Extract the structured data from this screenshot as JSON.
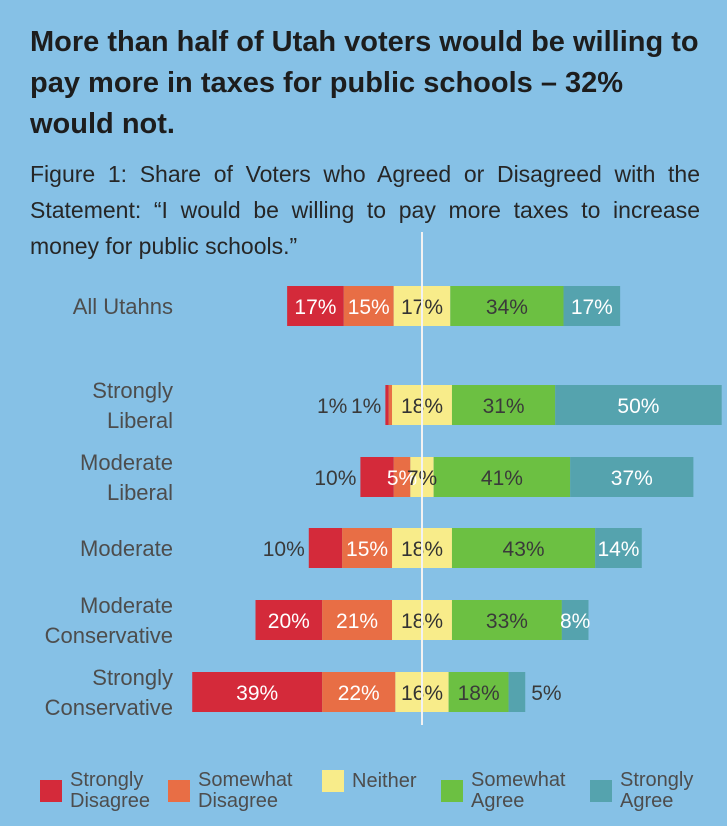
{
  "headline": "More than half of Utah voters would be willing to pay more in taxes for public schools – 32% would not.",
  "figure_title": "Figure 1: Share of Voters who Agreed or Disagreed with the Statement: “I would be willing to pay more taxes to increase money for public schools.”",
  "colors": {
    "background": "#86c1e6",
    "strongly_disagree": "#d42a3a",
    "somewhat_disagree": "#e86e45",
    "neither": "#f8ec8a",
    "somewhat_agree": "#6cc042",
    "strongly_agree": "#55a3ae"
  },
  "chart_data": {
    "type": "bar",
    "orientation": "horizontal-diverging-stacked",
    "categories": [
      "All Utahns",
      "Strongly\nLiberal",
      "Moderate\nLiberal",
      "Moderate",
      "Moderate\nConservative",
      "Strongly\nConservative"
    ],
    "series": [
      {
        "name": "Strongly Disagree",
        "values": [
          17,
          1,
          10,
          10,
          20,
          39
        ],
        "labels": [
          "17%",
          "1%",
          "10%",
          "10%",
          "20%",
          "39%"
        ]
      },
      {
        "name": "Somewhat Disagree",
        "values": [
          15,
          1,
          5,
          15,
          21,
          22
        ],
        "labels": [
          "15%",
          "1%",
          "5%",
          "15%",
          "21%",
          "22%"
        ]
      },
      {
        "name": "Neither",
        "values": [
          17,
          18,
          7,
          18,
          18,
          16
        ],
        "labels": [
          "17%",
          "18%",
          "7%",
          "18%",
          "18%",
          "16%"
        ]
      },
      {
        "name": "Somewhat Agree",
        "values": [
          34,
          31,
          41,
          43,
          33,
          18
        ],
        "labels": [
          "34%",
          "31%",
          "41%",
          "43%",
          "33%",
          "18%"
        ]
      },
      {
        "name": "Strongly Agree",
        "values": [
          17,
          50,
          37,
          14,
          8,
          5
        ],
        "labels": [
          "17%",
          "50%",
          "37%",
          "14%",
          "8%",
          "5%"
        ]
      }
    ]
  },
  "legend": [
    {
      "label": "Strongly\nDisagree",
      "color": "#d42a3a"
    },
    {
      "label": "Somewhat\nDisagree",
      "color": "#e86e45"
    },
    {
      "label": "Neither",
      "color": "#f8ec8a"
    },
    {
      "label": "Somewhat\nAgree",
      "color": "#6cc042"
    },
    {
      "label": "Strongly\nAgree",
      "color": "#55a3ae"
    }
  ]
}
